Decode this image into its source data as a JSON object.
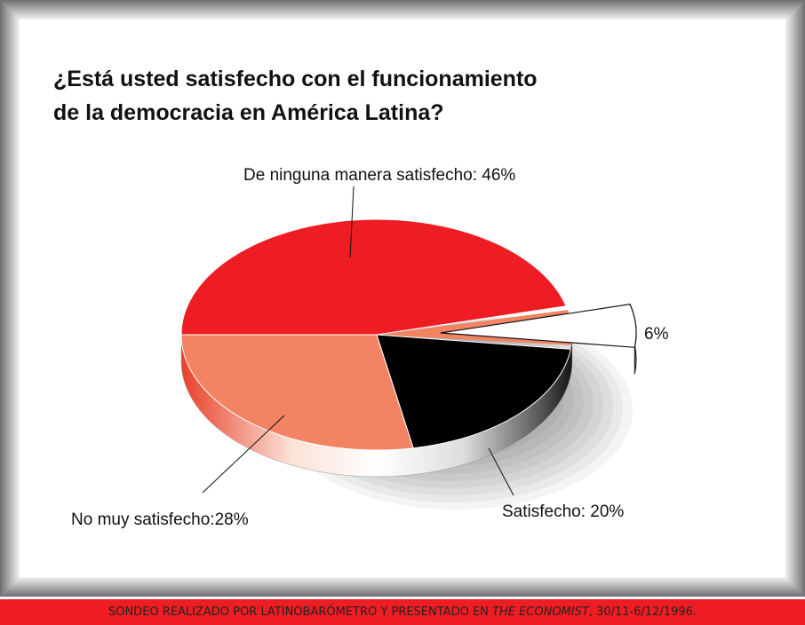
{
  "chart_data": {
    "type": "pie",
    "title_lines": [
      "¿Está usted satisfecho con el funcionamiento",
      "de la democracia en América Latina?"
    ],
    "slices": [
      {
        "label": "De ninguna manera satisfecho: 46%",
        "value": 46,
        "color": "#ee1d24"
      },
      {
        "label": "6%",
        "value": 6,
        "color": "#ffffff",
        "exploded": true
      },
      {
        "label": "Satisfecho: 20%",
        "value": 20,
        "color": "#000000"
      },
      {
        "label": "No muy satisfecho:28%",
        "value": 28,
        "color": "#f28363"
      }
    ]
  },
  "footer": {
    "prefix": "SONDEO REALIZADO POR LATINOBARÓMETRO Y PRESENTADO EN ",
    "source": "THE ECONOMIST",
    "suffix": ", 30/11-6/12/1996."
  },
  "colors": {
    "frame_gray": "#8c8c8c",
    "accent_red": "#ee1d24",
    "salmon": "#f28363"
  }
}
